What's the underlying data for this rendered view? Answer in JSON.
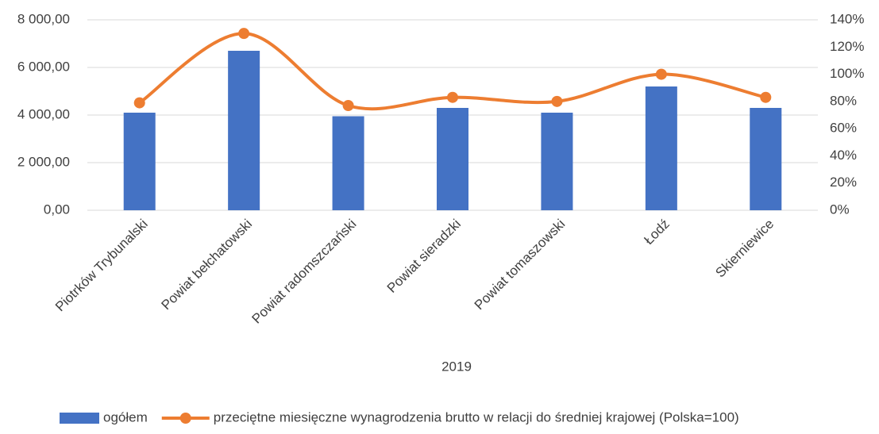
{
  "chart_data": {
    "type": "bar_line",
    "categories": [
      "Piotrków Trybunalski",
      "Powiat bełchatowski",
      "Powiat radomszczański",
      "Powiat sieradzki",
      "Powiat tomaszowski",
      "Łodź",
      "Skierniewice"
    ],
    "xlabel": "2019",
    "series": [
      {
        "name": "ogółem",
        "type": "bar",
        "color": "#4472c4",
        "values": [
          4100,
          6700,
          3950,
          4300,
          4100,
          5200,
          4300
        ]
      },
      {
        "name": "przeciętne miesięczne wynagrodzenia brutto w relacji do średniej krajowej (Polska=100)",
        "type": "line",
        "axis": "y2",
        "color": "#ed7d31",
        "values": [
          79,
          130,
          77,
          83,
          80,
          100,
          83
        ]
      }
    ],
    "ylim": [
      0,
      8000
    ],
    "yticks": [
      {
        "value": 0,
        "label": "0,00"
      },
      {
        "value": 2000,
        "label": "2 000,00"
      },
      {
        "value": 4000,
        "label": "4 000,00"
      },
      {
        "value": 6000,
        "label": "6 000,00"
      },
      {
        "value": 8000,
        "label": "8 000,00"
      }
    ],
    "y2lim": [
      0,
      140
    ],
    "y2ticks": [
      {
        "value": 0,
        "label": "0%"
      },
      {
        "value": 20,
        "label": "20%"
      },
      {
        "value": 40,
        "label": "40%"
      },
      {
        "value": 60,
        "label": "60%"
      },
      {
        "value": 80,
        "label": "80%"
      },
      {
        "value": 100,
        "label": "100%"
      },
      {
        "value": 120,
        "label": "120%"
      },
      {
        "value": 140,
        "label": "140%"
      }
    ],
    "grid": true,
    "legend": "bottom"
  }
}
